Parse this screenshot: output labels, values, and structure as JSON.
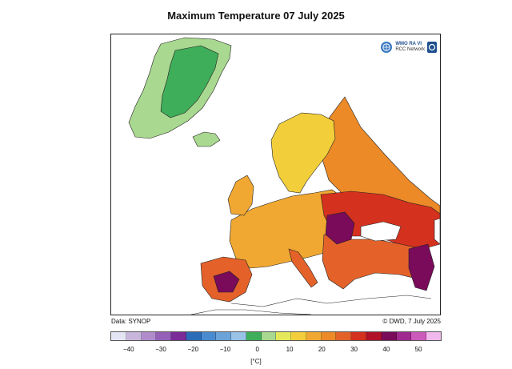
{
  "title": "Maximum Temperature 07 July 2025",
  "logo": {
    "line1": "WMO RA VI",
    "line2": "RCC Network"
  },
  "source_left": "Data: SYNOP",
  "source_right": "© DWD, 7 July 2025",
  "unit": "[°C]",
  "legend": {
    "ticks": [
      "−40",
      "−30",
      "−20",
      "−10",
      "0",
      "10",
      "20",
      "30",
      "40",
      "50"
    ],
    "colors": [
      "#e4e4f4",
      "#c9b6dc",
      "#b08ccc",
      "#9560b8",
      "#7a2c98",
      "#2b6cb8",
      "#4a8bd0",
      "#6aa3d8",
      "#98c2e6",
      "#3fae5a",
      "#a9d890",
      "#e5e85a",
      "#f2cf3a",
      "#f0a832",
      "#ec8a28",
      "#e4622a",
      "#d5311f",
      "#b0122a",
      "#7a0a5a",
      "#a02a8e",
      "#cc5ab8",
      "#f0b8ec"
    ]
  },
  "region_colors": {
    "greenland_outer": "#a9d890",
    "greenland_inner": "#3fae5a",
    "scandinavia": "#f2cf3a",
    "north_russia": "#ec8a28",
    "central_europe": "#f0a832",
    "east_europe": "#d5311f",
    "iberia": "#e4622a",
    "hot_core": "#7a0a5a"
  }
}
